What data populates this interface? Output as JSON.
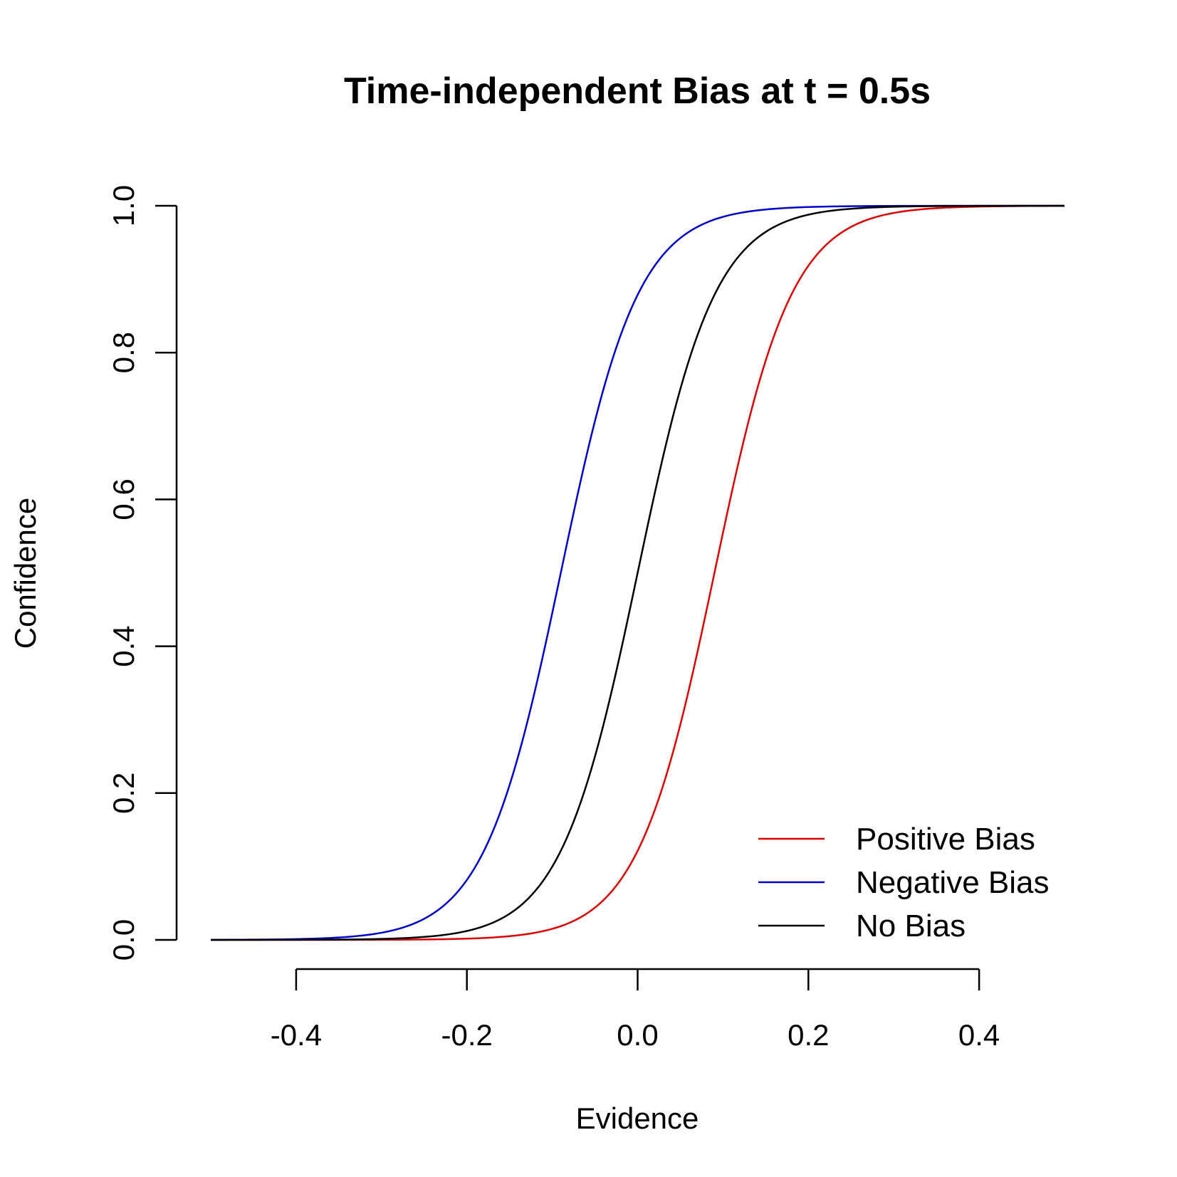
{
  "chart_data": {
    "type": "line",
    "title": "Time-independent Bias at t = 0.5s",
    "xlabel": "Evidence",
    "ylabel": "Confidence",
    "xlim": [
      -0.5,
      0.5
    ],
    "ylim": [
      0.0,
      1.0
    ],
    "x_ticks": [
      -0.4,
      -0.2,
      0.0,
      0.2,
      0.4
    ],
    "x_tick_labels": [
      "-0.4",
      "-0.2",
      "0.0",
      "0.2",
      "0.4"
    ],
    "y_ticks": [
      0.0,
      0.2,
      0.4,
      0.6,
      0.8,
      1.0
    ],
    "y_tick_labels": [
      "0.0",
      "0.2",
      "0.4",
      "0.6",
      "0.8",
      "1.0"
    ],
    "grid": false,
    "legend_position": "bottom-right",
    "series": [
      {
        "name": "Positive Bias",
        "color": "#dd0000",
        "center": 0.09,
        "slope": 22
      },
      {
        "name": "Negative Bias",
        "color": "#0000cc",
        "center": -0.09,
        "slope": 22
      },
      {
        "name": "No Bias",
        "color": "#000000",
        "center": 0.0,
        "slope": 22
      }
    ]
  }
}
